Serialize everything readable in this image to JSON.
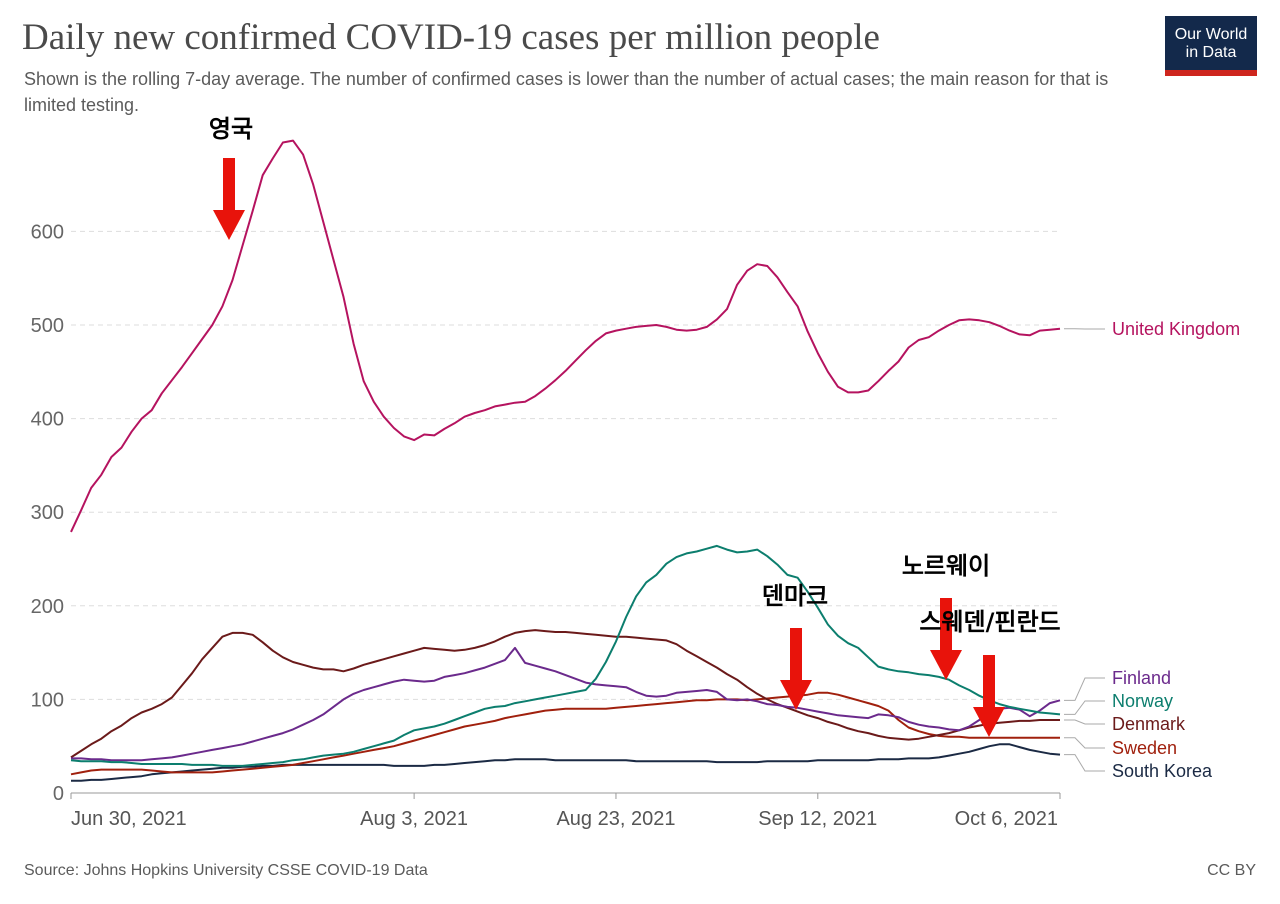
{
  "header": {
    "title": "Daily new confirmed COVID-19 cases per million people",
    "subtitle": "Shown is the rolling 7-day average. The number of confirmed cases is lower than the number of actual cases; the main reason for that is limited testing.",
    "logo_line1": "Our World",
    "logo_line2": "in Data"
  },
  "footer": {
    "source": "Source: Johns Hopkins University CSSE COVID-19 Data",
    "license": "CC BY"
  },
  "chart_data": {
    "type": "line",
    "title": "Daily new confirmed COVID-19 cases per million people",
    "xlabel": "",
    "ylabel": "",
    "x_day_range": [
      0,
      98
    ],
    "ylim": [
      0,
      700
    ],
    "yticks": [
      0,
      100,
      200,
      300,
      400,
      500,
      600
    ],
    "xticks": [
      {
        "day": 0,
        "label": "Jun 30, 2021"
      },
      {
        "day": 34,
        "label": "Aug 3, 2021"
      },
      {
        "day": 54,
        "label": "Aug 23, 2021"
      },
      {
        "day": 74,
        "label": "Sep 12, 2021"
      },
      {
        "day": 98,
        "label": "Oct 6, 2021"
      }
    ],
    "series": [
      {
        "name": "United Kingdom",
        "color": "#b5135f",
        "values": [
          279,
          302,
          326,
          340,
          359,
          369,
          386,
          400,
          409,
          427,
          441,
          455,
          470,
          485,
          500,
          520,
          548,
          585,
          622,
          660,
          678,
          695,
          697,
          682,
          650,
          610,
          570,
          530,
          480,
          440,
          418,
          402,
          390,
          381,
          377,
          383,
          382,
          389,
          395,
          402,
          406,
          409,
          413,
          415,
          417,
          418,
          424,
          432,
          441,
          451,
          462,
          473,
          483,
          491,
          494,
          496,
          498,
          499,
          500,
          498,
          495,
          494,
          495,
          498,
          506,
          517,
          543,
          558,
          565,
          563,
          551,
          535,
          520,
          493,
          470,
          450,
          434,
          428,
          428,
          430,
          440,
          451,
          461,
          476,
          484,
          487,
          494,
          500,
          505,
          506,
          505,
          503,
          499,
          494,
          490,
          489,
          494,
          495,
          496
        ]
      },
      {
        "name": "Norway",
        "color": "#0c7e6e",
        "values": [
          35,
          34,
          34,
          34,
          33,
          33,
          32,
          31,
          31,
          31,
          31,
          31,
          30,
          30,
          30,
          29,
          29,
          29,
          30,
          31,
          32,
          33,
          35,
          36,
          38,
          40,
          41,
          42,
          44,
          47,
          50,
          53,
          56,
          62,
          67,
          69,
          71,
          74,
          78,
          82,
          86,
          90,
          92,
          93,
          96,
          98,
          100,
          102,
          104,
          106,
          108,
          110,
          122,
          140,
          162,
          188,
          210,
          225,
          233,
          245,
          252,
          256,
          258,
          261,
          264,
          260,
          257,
          258,
          260,
          253,
          244,
          233,
          230,
          215,
          198,
          180,
          168,
          160,
          155,
          145,
          135,
          132,
          130,
          129,
          127,
          126,
          124,
          121,
          115,
          110,
          104,
          99,
          95,
          92,
          90,
          88,
          86,
          85,
          84
        ]
      },
      {
        "name": "Denmark",
        "color": "#6b1a1a",
        "values": [
          38,
          45,
          52,
          58,
          66,
          72,
          80,
          86,
          90,
          95,
          102,
          115,
          128,
          143,
          155,
          167,
          171,
          171,
          169,
          161,
          152,
          145,
          140,
          137,
          134,
          132,
          132,
          130,
          133,
          137,
          140,
          143,
          146,
          149,
          152,
          155,
          154,
          153,
          152,
          153,
          155,
          158,
          162,
          167,
          171,
          173,
          174,
          173,
          172,
          172,
          171,
          170,
          169,
          168,
          167,
          167,
          166,
          165,
          164,
          163,
          159,
          152,
          146,
          140,
          134,
          127,
          121,
          113,
          106,
          100,
          95,
          91,
          87,
          83,
          80,
          76,
          73,
          69,
          66,
          64,
          61,
          59,
          58,
          57,
          58,
          60,
          62,
          64,
          67,
          70,
          72,
          74,
          75,
          76,
          77,
          77,
          78,
          78,
          78
        ]
      },
      {
        "name": "Sweden",
        "color": "#a0200d",
        "values": [
          20,
          22,
          24,
          25,
          25,
          25,
          25,
          25,
          24,
          23,
          22,
          22,
          22,
          22,
          22,
          23,
          24,
          25,
          26,
          27,
          28,
          29,
          30,
          32,
          34,
          36,
          38,
          40,
          42,
          44,
          46,
          48,
          50,
          53,
          56,
          59,
          62,
          65,
          68,
          71,
          73,
          75,
          77,
          80,
          82,
          84,
          86,
          88,
          89,
          90,
          90,
          90,
          90,
          90,
          91,
          92,
          93,
          94,
          95,
          96,
          97,
          98,
          99,
          99,
          100,
          100,
          100,
          99,
          100,
          101,
          102,
          103,
          104,
          105,
          107,
          107,
          105,
          102,
          99,
          96,
          93,
          88,
          78,
          70,
          66,
          63,
          61,
          60,
          60,
          59,
          59,
          59,
          59,
          59,
          59,
          59,
          59,
          59,
          59
        ]
      },
      {
        "name": "Finland",
        "color": "#6b2a8c",
        "values": [
          37,
          37,
          36,
          36,
          35,
          35,
          35,
          35,
          36,
          37,
          38,
          40,
          42,
          44,
          46,
          48,
          50,
          52,
          55,
          58,
          61,
          64,
          68,
          73,
          78,
          84,
          92,
          100,
          106,
          110,
          113,
          116,
          119,
          121,
          120,
          119,
          120,
          124,
          126,
          128,
          131,
          134,
          138,
          142,
          155,
          139,
          136,
          133,
          130,
          126,
          122,
          118,
          116,
          115,
          114,
          113,
          108,
          104,
          103,
          104,
          107,
          108,
          109,
          110,
          108,
          100,
          99,
          100,
          98,
          95,
          94,
          92,
          91,
          89,
          87,
          85,
          83,
          82,
          81,
          80,
          84,
          83,
          81,
          76,
          73,
          71,
          70,
          68,
          67,
          71,
          78,
          88,
          90,
          91,
          89,
          82,
          88,
          96,
          99
        ]
      },
      {
        "name": "South Korea",
        "color": "#1b2a44",
        "values": [
          13,
          13,
          14,
          14,
          15,
          16,
          17,
          18,
          20,
          21,
          22,
          23,
          24,
          25,
          26,
          27,
          27,
          28,
          28,
          29,
          29,
          30,
          30,
          30,
          30,
          30,
          30,
          30,
          30,
          30,
          30,
          30,
          29,
          29,
          29,
          29,
          30,
          30,
          31,
          32,
          33,
          34,
          35,
          35,
          36,
          36,
          36,
          36,
          35,
          35,
          35,
          35,
          35,
          35,
          35,
          35,
          34,
          34,
          34,
          34,
          34,
          34,
          34,
          34,
          33,
          33,
          33,
          33,
          33,
          34,
          34,
          34,
          34,
          34,
          35,
          35,
          35,
          35,
          35,
          35,
          36,
          36,
          36,
          37,
          37,
          37,
          38,
          40,
          42,
          44,
          47,
          50,
          52,
          52,
          49,
          46,
          44,
          42,
          41
        ]
      }
    ],
    "annotations": [
      {
        "text": "영국"
      },
      {
        "text": "덴마크"
      },
      {
        "text": "노르웨이"
      },
      {
        "text": "스웨덴/핀란드"
      }
    ]
  }
}
